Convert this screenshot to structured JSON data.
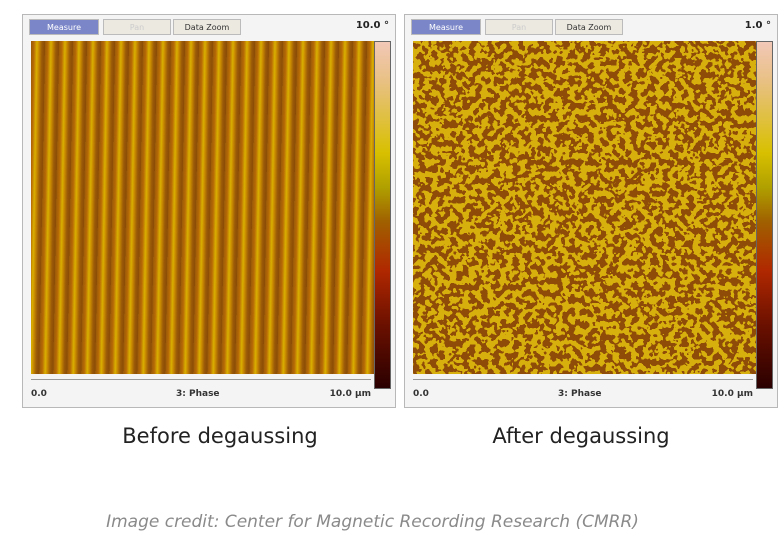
{
  "panels": [
    {
      "toolbar": [
        "Measure",
        "Pan",
        "Data Zoom"
      ],
      "scale_max": "10.0 °",
      "axis": {
        "start": "0.0",
        "label": "3: Phase",
        "end": "10.0 µm"
      },
      "caption": "Before degaussing"
    },
    {
      "toolbar": [
        "Measure",
        "Pan",
        "Data Zoom"
      ],
      "scale_max": "1.0 °",
      "axis": {
        "start": "0.0",
        "label": "3: Phase",
        "end": "10.0 µm"
      },
      "caption": "After degaussing"
    }
  ],
  "credit": "Image credit: Center for Magnetic Recording Research (CMRR)"
}
